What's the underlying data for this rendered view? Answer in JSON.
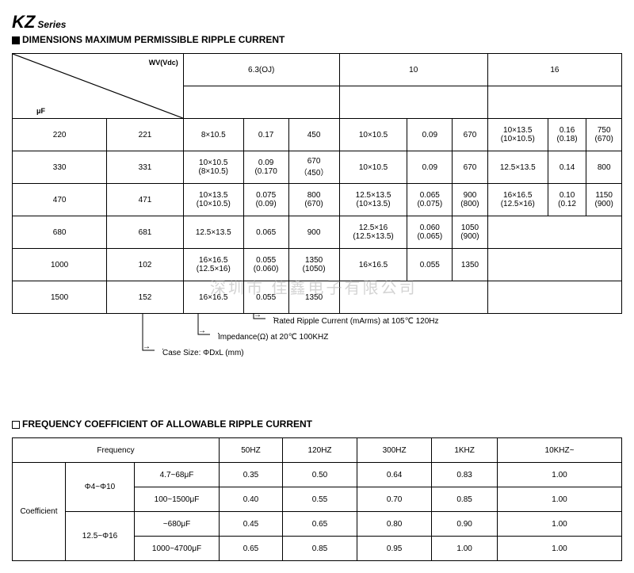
{
  "header": {
    "series_name": "KZ",
    "series_word": "Series",
    "section1": "DIMENSIONS MAXIMUM PERMISSIBLE RIPPLE CURRENT",
    "section2": "FREQUENCY COEFFICIENT OF ALLOWABLE RIPPLE CURRENT"
  },
  "main": {
    "diag_top": "WV(Vdc)",
    "diag_bottom": "μF",
    "voltages": [
      "6.3(OJ)",
      "10",
      "16"
    ],
    "rows": [
      {
        "uf": "220",
        "code": "221",
        "v63": [
          "8×10.5",
          "0.17",
          "450"
        ],
        "v10": [
          "10×10.5",
          "0.09",
          "670"
        ],
        "v16": [
          "10×13.5\n(10×10.5)",
          "0.16\n(0.18)",
          "750\n(670)"
        ]
      },
      {
        "uf": "330",
        "code": "331",
        "v63": [
          "10×10.5\n(8×10.5)",
          "0.09\n(0.170",
          "670\n（450）"
        ],
        "v10": [
          "10×10.5",
          "0.09",
          "670"
        ],
        "v16": [
          "12.5×13.5",
          "0.14",
          "800"
        ]
      },
      {
        "uf": "470",
        "code": "471",
        "v63": [
          "10×13.5\n(10×10.5)",
          "0.075\n(0.09)",
          "800\n(670)"
        ],
        "v10": [
          "12.5×13.5\n(10×13.5)",
          "0.065\n(0.075)",
          "900\n(800)"
        ],
        "v16": [
          "16×16.5\n(12.5×16)",
          "0.10\n(0.12",
          "1150\n(900)"
        ]
      },
      {
        "uf": "680",
        "code": "681",
        "v63": [
          "12.5×13.5",
          "0.065",
          "900"
        ],
        "v10": [
          "12.5×16\n(12.5×13.5)",
          "0.060\n(0.065)",
          "1050\n(900)"
        ],
        "v16": [
          "",
          "",
          ""
        ]
      },
      {
        "uf": "1000",
        "code": "102",
        "v63": [
          "16×16.5\n(12.5×16)",
          "0.055\n(0.060)",
          "1350\n(1050)"
        ],
        "v10": [
          "16×16.5",
          "0.055",
          "1350"
        ],
        "v16": [
          "",
          "",
          ""
        ]
      },
      {
        "uf": "1500",
        "code": "152",
        "v63": [
          "16×16.5",
          "0.055",
          "1350"
        ],
        "v10": [
          "",
          "",
          ""
        ],
        "v16": [
          "",
          "",
          ""
        ]
      }
    ],
    "callout1": "Rated Ripple Current (mArms) at 105℃ 120Hz",
    "callout2": "Impedance(Ω) at 20℃ 100KHZ",
    "callout3": "Case Size: ΦDxL (mm)"
  },
  "freq": {
    "header_freq": "Frequency",
    "header_coef": "Coefficient",
    "freq_cols": [
      "50HZ",
      "120HZ",
      "300HZ",
      "1KHZ",
      "10KHZ~"
    ],
    "groups": [
      {
        "dia": "Φ4~Φ10",
        "rows": [
          {
            "cap": "4.7~68μF",
            "vals": [
              "0.35",
              "0.50",
              "0.64",
              "0.83",
              "1.00"
            ]
          },
          {
            "cap": "100~1500μF",
            "vals": [
              "0.40",
              "0.55",
              "0.70",
              "0.85",
              "1.00"
            ]
          }
        ]
      },
      {
        "dia": "12.5~Φ16",
        "rows": [
          {
            "cap": "~680μF",
            "vals": [
              "0.45",
              "0.65",
              "0.80",
              "0.90",
              "1.00"
            ]
          },
          {
            "cap": "1000~4700μF",
            "vals": [
              "0.65",
              "0.85",
              "0.95",
              "1.00",
              "1.00"
            ]
          }
        ]
      }
    ]
  },
  "watermark": "深圳市 佳鑫电子有限公司"
}
